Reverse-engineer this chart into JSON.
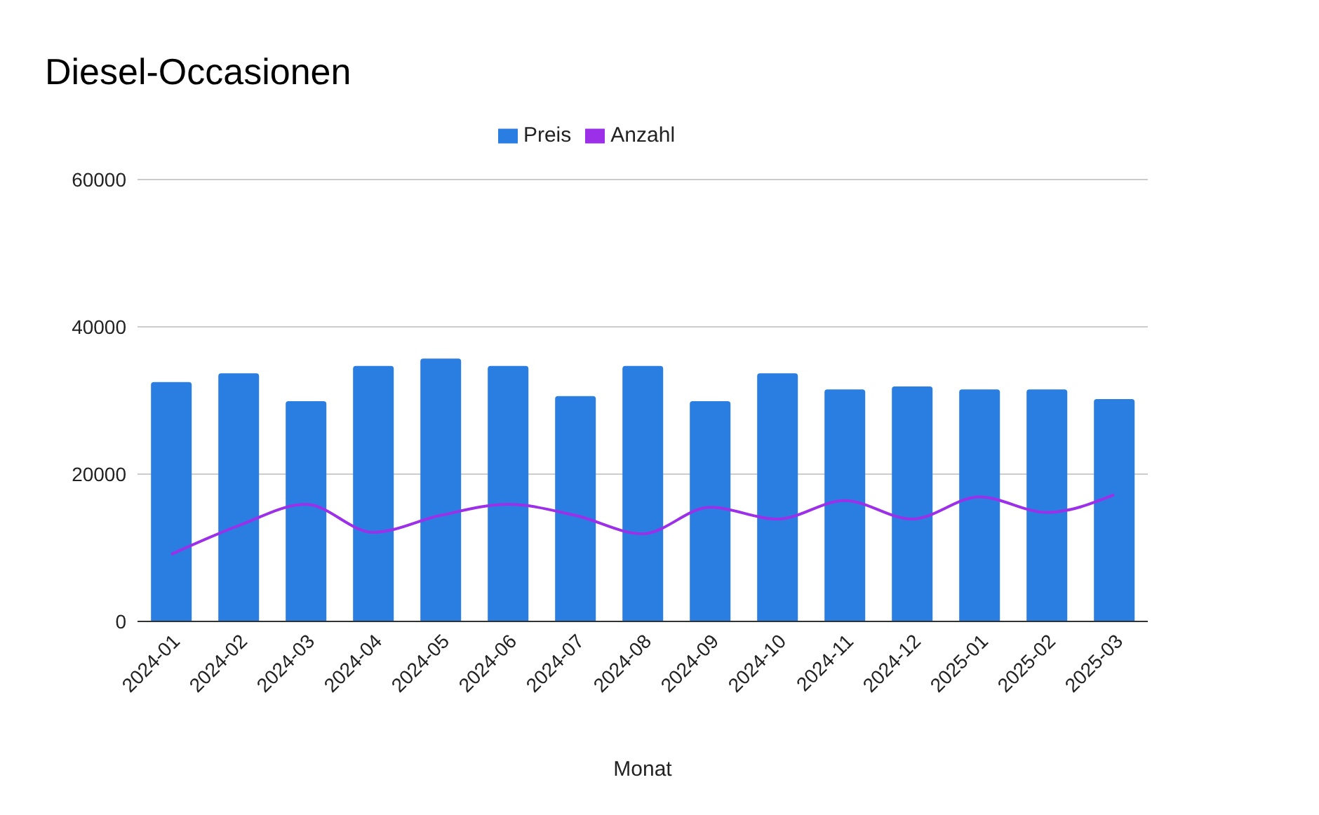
{
  "chart_data": {
    "type": "bar",
    "title": "Diesel-Occasionen",
    "xlabel": "Monat",
    "categories": [
      "2024-01",
      "2024-02",
      "2024-03",
      "2024-04",
      "2024-05",
      "2024-06",
      "2024-07",
      "2024-08",
      "2024-09",
      "2024-10",
      "2024-11",
      "2024-12",
      "2025-01",
      "2025-02",
      "2025-03"
    ],
    "series": [
      {
        "name": "Preis",
        "color": "#2a7de1",
        "values": [
          32500,
          33700,
          29900,
          34700,
          35700,
          34700,
          30600,
          34700,
          29900,
          33700,
          31500,
          31900,
          31500,
          31500,
          30200
        ]
      },
      {
        "name": "Anzahl",
        "type": "line",
        "color": "#9b30e8",
        "values": [
          9100,
          13000,
          15900,
          12100,
          14400,
          15900,
          14400,
          11900,
          15500,
          13900,
          16400,
          13900,
          16900,
          14800,
          17200
        ]
      }
    ],
    "ylim": [
      0,
      60000
    ],
    "yticks": [
      0,
      20000,
      40000,
      60000
    ],
    "grid": "y",
    "legend": "top",
    "marker": "none"
  }
}
